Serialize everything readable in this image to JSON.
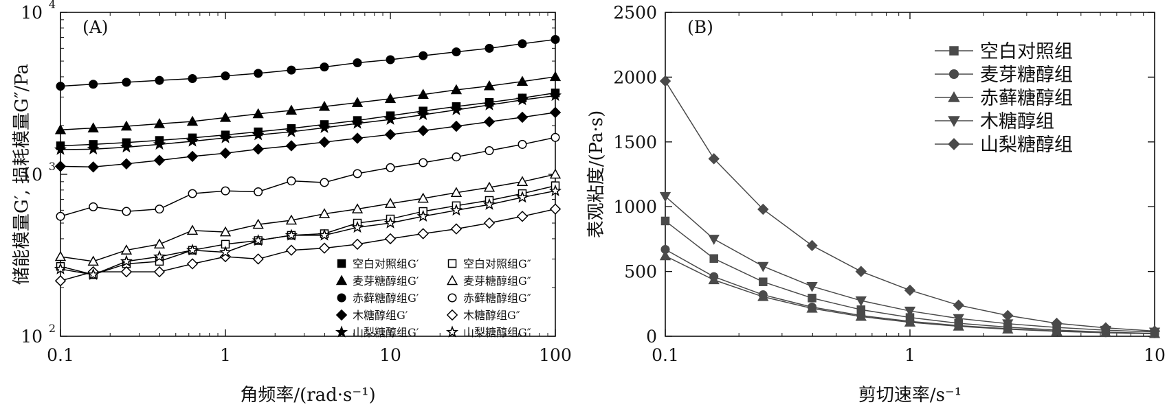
{
  "chart_data": [
    {
      "type": "line",
      "panel_label": "(A)",
      "xlabel": "角频率/(rad·s⁻¹)",
      "ylabel": "储能模量G′, 损耗模量G″/Pa",
      "xscale": "log",
      "yscale": "log",
      "xlim": [
        0.1,
        100
      ],
      "ylim": [
        100,
        10000
      ],
      "x_ticks": [
        {
          "v": 0.1,
          "label": "0.1"
        },
        {
          "v": 1,
          "label": "1"
        },
        {
          "v": 10,
          "label": "10"
        },
        {
          "v": 100,
          "label": "100"
        }
      ],
      "y_ticks": [
        {
          "v": 100,
          "base": "10",
          "exp": "2"
        },
        {
          "v": 1000,
          "base": "10",
          "exp": "3"
        },
        {
          "v": 10000,
          "base": "10",
          "exp": "4"
        }
      ],
      "grid": false,
      "legend_position": "bottom-right",
      "x": [
        0.1,
        0.158,
        0.251,
        0.398,
        0.631,
        1,
        1.58,
        2.51,
        3.98,
        6.31,
        10,
        15.8,
        25.1,
        39.8,
        63.1,
        100
      ],
      "series": [
        {
          "name": "空白对照组G′",
          "marker": "square",
          "filled": true,
          "values": [
            1500,
            1530,
            1570,
            1620,
            1680,
            1750,
            1830,
            1920,
            2030,
            2150,
            2300,
            2460,
            2620,
            2780,
            2960,
            3180
          ]
        },
        {
          "name": "空白对照组G″",
          "marker": "square",
          "filled": false,
          "values": [
            270,
            240,
            280,
            290,
            340,
            370,
            390,
            420,
            430,
            500,
            530,
            590,
            640,
            690,
            760,
            850
          ]
        },
        {
          "name": "麦芽糖醇组G′",
          "marker": "triangle",
          "filled": true,
          "values": [
            1880,
            1930,
            1980,
            2050,
            2120,
            2240,
            2360,
            2480,
            2620,
            2770,
            2930,
            3110,
            3320,
            3510,
            3740,
            4000
          ]
        },
        {
          "name": "麦芽糖醇组G″",
          "marker": "triangle",
          "filled": false,
          "values": [
            310,
            290,
            340,
            370,
            450,
            440,
            490,
            520,
            570,
            610,
            660,
            710,
            770,
            830,
            900,
            1000
          ]
        },
        {
          "name": "赤藓糖醇组G′",
          "marker": "circle",
          "filled": true,
          "values": [
            3500,
            3600,
            3700,
            3800,
            3900,
            4050,
            4200,
            4400,
            4600,
            4880,
            5100,
            5400,
            5700,
            6000,
            6400,
            6800
          ]
        },
        {
          "name": "赤藓糖醇组G″",
          "marker": "circle",
          "filled": false,
          "values": [
            550,
            630,
            590,
            610,
            760,
            790,
            780,
            910,
            890,
            1010,
            1100,
            1180,
            1280,
            1400,
            1530,
            1690
          ]
        },
        {
          "name": "木糖醇组G′",
          "marker": "diamond",
          "filled": true,
          "values": [
            1120,
            1110,
            1160,
            1220,
            1290,
            1350,
            1430,
            1500,
            1580,
            1670,
            1760,
            1860,
            1980,
            2110,
            2250,
            2410
          ]
        },
        {
          "name": "木糖醇组G″",
          "marker": "diamond",
          "filled": false,
          "values": [
            220,
            250,
            250,
            250,
            280,
            310,
            300,
            340,
            350,
            370,
            400,
            430,
            460,
            500,
            550,
            610
          ]
        },
        {
          "name": "山梨糖醇组G′",
          "marker": "star",
          "filled": true,
          "values": [
            1420,
            1430,
            1470,
            1530,
            1600,
            1680,
            1750,
            1830,
            1940,
            2060,
            2180,
            2330,
            2500,
            2680,
            2880,
            3060
          ]
        },
        {
          "name": "山梨糖醇组G″",
          "marker": "star",
          "filled": false,
          "values": [
            260,
            240,
            290,
            310,
            340,
            330,
            390,
            420,
            420,
            470,
            500,
            550,
            600,
            650,
            720,
            790
          ]
        }
      ]
    },
    {
      "type": "line",
      "panel_label": "(B)",
      "xlabel": "剪切速率/s⁻¹",
      "ylabel": "表观粘度/(Pa·s)",
      "xscale": "log",
      "yscale": "linear",
      "xlim": [
        0.1,
        10
      ],
      "ylim": [
        0,
        2500
      ],
      "x_ticks": [
        {
          "v": 0.1,
          "label": "0.1"
        },
        {
          "v": 1,
          "label": "1"
        },
        {
          "v": 10,
          "label": "10"
        }
      ],
      "y_ticks": [
        {
          "v": 0,
          "label": "0"
        },
        {
          "v": 500,
          "label": "500"
        },
        {
          "v": 1000,
          "label": "1000"
        },
        {
          "v": 1500,
          "label": "1500"
        },
        {
          "v": 2000,
          "label": "2000"
        },
        {
          "v": 2500,
          "label": "2500"
        }
      ],
      "grid": false,
      "legend_position": "top-right",
      "line_color": "#4a4a4a",
      "x": [
        0.1,
        0.158,
        0.251,
        0.398,
        0.631,
        1,
        1.58,
        2.51,
        3.98,
        6.31,
        10
      ],
      "series": [
        {
          "name": "空白对照组",
          "marker": "square",
          "values": [
            890,
            600,
            420,
            295,
            205,
            145,
            100,
            70,
            48,
            32,
            22
          ]
        },
        {
          "name": "麦芽糖醇组",
          "marker": "circle",
          "values": [
            670,
            460,
            320,
            225,
            160,
            115,
            82,
            58,
            40,
            28,
            20
          ]
        },
        {
          "name": "赤藓糖醇组",
          "marker": "triangle",
          "values": [
            620,
            435,
            305,
            215,
            152,
            108,
            77,
            54,
            38,
            27,
            19
          ]
        },
        {
          "name": "木糖醇组",
          "marker": "triangle-down",
          "values": [
            1080,
            750,
            540,
            385,
            275,
            195,
            138,
            97,
            68,
            47,
            33
          ]
        },
        {
          "name": "山梨糖醇组",
          "marker": "diamond",
          "values": [
            1970,
            1370,
            980,
            700,
            500,
            355,
            240,
            160,
            100,
            65,
            40
          ]
        }
      ]
    }
  ]
}
